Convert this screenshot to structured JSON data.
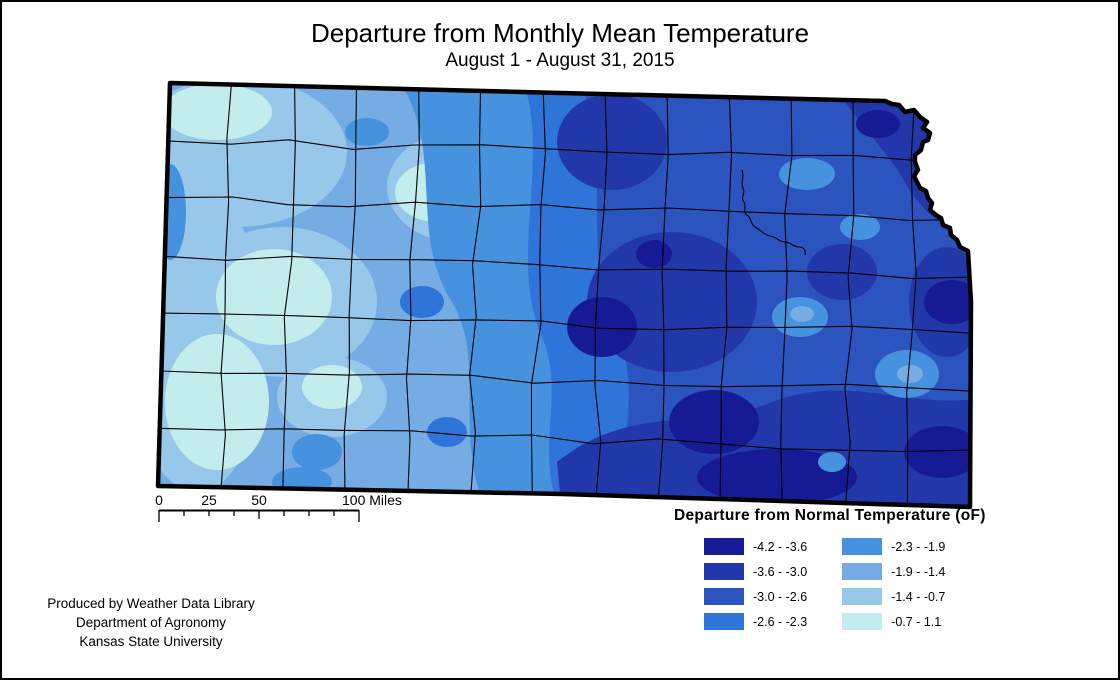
{
  "title": "Departure from Monthly Mean Temperature",
  "subtitle": "August 1 - August 31, 2015",
  "legend": {
    "title": "Departure from Normal Temperature (oF)",
    "classes": [
      {
        "label": "-4.2 - -3.6",
        "color": "#161A94"
      },
      {
        "label": "-3.6 - -3.0",
        "color": "#2238AA"
      },
      {
        "label": "-3.0 - -2.6",
        "color": "#2C54BE"
      },
      {
        "label": "-2.6 - -2.3",
        "color": "#2F74D8"
      },
      {
        "label": "-2.3 - -1.9",
        "color": "#4792DF"
      },
      {
        "label": "-1.9 - -1.4",
        "color": "#74ACE3"
      },
      {
        "label": "-1.4 - -0.7",
        "color": "#97C8E9"
      },
      {
        "label": "-0.7 - 1.1",
        "color": "#C3EDEC"
      }
    ]
  },
  "scalebar": {
    "labels": [
      "0",
      "25",
      "50",
      "100 Miles"
    ]
  },
  "attribution": {
    "line1": "Produced by Weather Data Library",
    "line2": "Department of Agronomy",
    "line3": "Kansas State University"
  }
}
